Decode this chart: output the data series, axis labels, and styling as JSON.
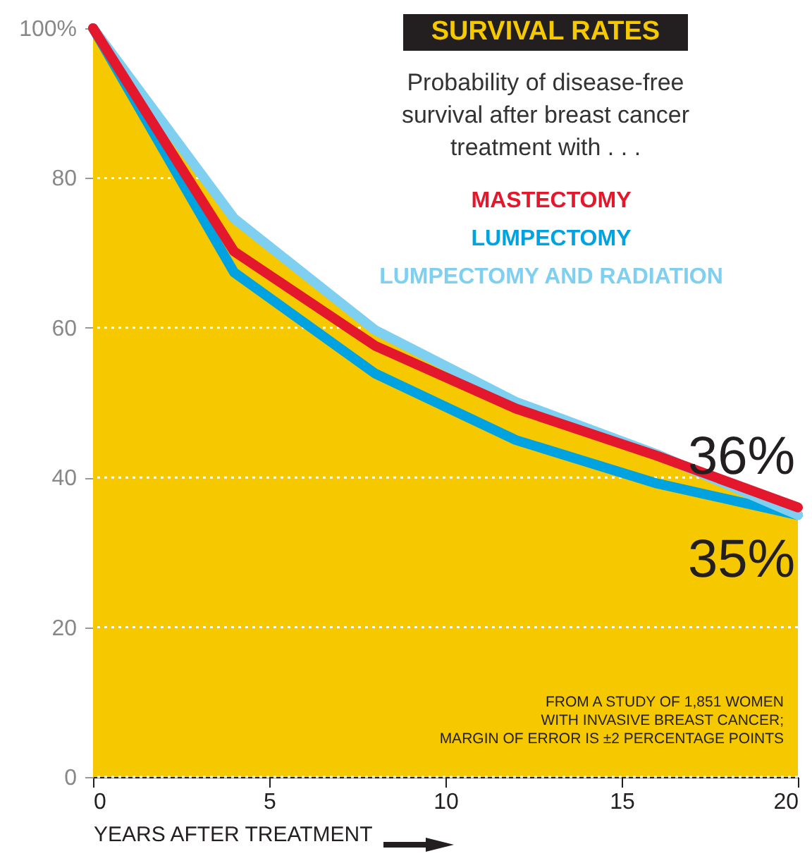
{
  "chart_data": {
    "type": "line",
    "title": "SURVIVAL RATES",
    "subtitle": "Probability of disease-free survival after breast cancer treatment with . . .",
    "xlabel": "YEARS AFTER TREATMENT",
    "x": [
      0,
      4,
      8,
      12,
      16,
      20
    ],
    "series": [
      {
        "type": "area",
        "color": "#f5c800",
        "values": [
          100,
          74.6,
          59.7,
          50.1,
          43.1,
          35
        ]
      },
      {
        "name": "LUMPECTOMY",
        "color": "#00a3e0",
        "values": [
          100,
          67.4,
          53.9,
          45,
          39.2,
          35
        ]
      },
      {
        "name": "LUMPECTOMY AND RADIATION",
        "color": "#7fd0f0",
        "values": [
          100,
          74.6,
          59.7,
          50.1,
          43.1,
          35
        ]
      },
      {
        "name": "MASTECTOMY",
        "color": "#e3182d",
        "values": [
          100,
          70.2,
          57.6,
          49.2,
          42.9,
          36
        ]
      }
    ],
    "xlim": [
      0,
      20
    ],
    "xticks": [
      0,
      5,
      10,
      15,
      20
    ],
    "ylim": [
      0,
      100
    ],
    "yticks": [
      0,
      20,
      40,
      60,
      80,
      {
        "value": 100,
        "label": "100%"
      }
    ],
    "grid": "y",
    "legend": "top right",
    "annotations": [
      {
        "text": "36%",
        "x": 20,
        "y": 36
      },
      {
        "text": "35%",
        "x": 20,
        "y": 35
      },
      "FROM A STUDY OF 1,851 WOMEN\nWITH INVASIVE BREAST CANCER;\nMARGIN OF ERROR IS ±2 PERCENTAGE POINTS"
    ]
  }
}
